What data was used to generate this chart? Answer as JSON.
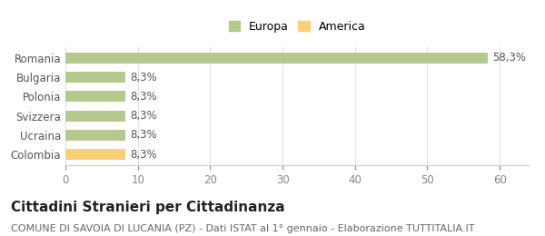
{
  "categories": [
    "Colombia",
    "Ucraina",
    "Svizzera",
    "Polonia",
    "Bulgaria",
    "Romania"
  ],
  "values": [
    8.3,
    8.3,
    8.3,
    8.3,
    8.3,
    58.3
  ],
  "bar_colors": [
    "#f9d077",
    "#b5c98e",
    "#b5c98e",
    "#b5c98e",
    "#b5c98e",
    "#b5c98e"
  ],
  "bar_labels": [
    "8,3%",
    "8,3%",
    "8,3%",
    "8,3%",
    "8,3%",
    "58,3%"
  ],
  "legend": [
    {
      "label": "Europa",
      "color": "#b5c98e"
    },
    {
      "label": "America",
      "color": "#f9d077"
    }
  ],
  "xlim": [
    0,
    64
  ],
  "xticks": [
    0,
    10,
    20,
    30,
    40,
    50,
    60
  ],
  "title": "Cittadini Stranieri per Cittadinanza",
  "subtitle": "COMUNE DI SAVOIA DI LUCANIA (PZ) - Dati ISTAT al 1° gennaio - Elaborazione TUTTITALIA.IT",
  "background_color": "#ffffff",
  "grid_color": "#e0e0e0",
  "label_fontsize": 8.5,
  "bar_label_fontsize": 8.5,
  "title_fontsize": 11,
  "subtitle_fontsize": 8
}
